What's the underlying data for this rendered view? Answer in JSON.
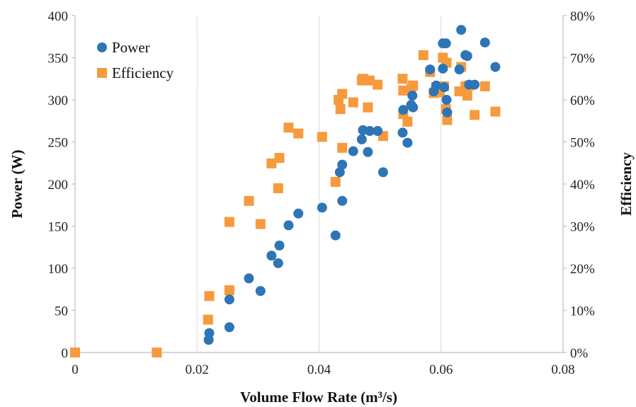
{
  "chart_data": {
    "type": "scatter",
    "xlabel": "Volume Flow Rate (m³/s)",
    "ylabel": "Power (W)",
    "y2label": "Efficiency",
    "xlim": [
      0,
      0.08
    ],
    "ylim": [
      0,
      400
    ],
    "y2lim": [
      0,
      0.8
    ],
    "x_ticks": [
      "0",
      "0.02",
      "0.04",
      "0.06",
      "0.08"
    ],
    "y_ticks": [
      "0",
      "50",
      "100",
      "150",
      "200",
      "250",
      "300",
      "350",
      "400"
    ],
    "y2_ticks": [
      "0%",
      "10%",
      "20%",
      "30%",
      "40%",
      "50%",
      "60%",
      "70%",
      "80%"
    ],
    "grid": "vertical",
    "legend_position": "top-left",
    "colors": {
      "power": "#2E75B6",
      "efficiency": "#F79A3E"
    },
    "series": [
      {
        "name": "Power",
        "axis": "left",
        "marker": "circle",
        "points": [
          [
            0.0219,
            15
          ],
          [
            0.022,
            23
          ],
          [
            0.0253,
            63
          ],
          [
            0.0253,
            30
          ],
          [
            0.0285,
            88
          ],
          [
            0.0304,
            73
          ],
          [
            0.0322,
            115
          ],
          [
            0.0333,
            106
          ],
          [
            0.0335,
            127
          ],
          [
            0.035,
            151
          ],
          [
            0.0366,
            165
          ],
          [
            0.0405,
            172
          ],
          [
            0.0427,
            139
          ],
          [
            0.0434,
            214
          ],
          [
            0.0438,
            223
          ],
          [
            0.0438,
            180
          ],
          [
            0.0456,
            239
          ],
          [
            0.047,
            253
          ],
          [
            0.0472,
            264
          ],
          [
            0.048,
            238
          ],
          [
            0.0483,
            263
          ],
          [
            0.0496,
            263
          ],
          [
            0.0505,
            214
          ],
          [
            0.0537,
            261
          ],
          [
            0.0538,
            288
          ],
          [
            0.0545,
            249
          ],
          [
            0.0551,
            294
          ],
          [
            0.0553,
            305
          ],
          [
            0.0554,
            291
          ],
          [
            0.0582,
            336
          ],
          [
            0.0588,
            310
          ],
          [
            0.0592,
            317
          ],
          [
            0.0603,
            337
          ],
          [
            0.0603,
            367
          ],
          [
            0.0605,
            315
          ],
          [
            0.0608,
            367
          ],
          [
            0.0609,
            300
          ],
          [
            0.061,
            285
          ],
          [
            0.063,
            336
          ],
          [
            0.0633,
            383
          ],
          [
            0.064,
            353
          ],
          [
            0.0643,
            352
          ],
          [
            0.0646,
            318
          ],
          [
            0.0655,
            318
          ],
          [
            0.0672,
            368
          ],
          [
            0.0689,
            339
          ]
        ]
      },
      {
        "name": "Efficiency",
        "axis": "right",
        "marker": "square",
        "points": [
          [
            0,
            0
          ],
          [
            0.0134,
            0
          ],
          [
            0.0218,
            0.078
          ],
          [
            0.022,
            0.134
          ],
          [
            0.0253,
            0.31
          ],
          [
            0.0253,
            0.148
          ],
          [
            0.0285,
            0.36
          ],
          [
            0.0304,
            0.305
          ],
          [
            0.0322,
            0.449
          ],
          [
            0.0333,
            0.39
          ],
          [
            0.0335,
            0.462
          ],
          [
            0.035,
            0.534
          ],
          [
            0.0366,
            0.52
          ],
          [
            0.0405,
            0.512
          ],
          [
            0.0427,
            0.405
          ],
          [
            0.0432,
            0.6
          ],
          [
            0.0435,
            0.578
          ],
          [
            0.0438,
            0.614
          ],
          [
            0.0438,
            0.486
          ],
          [
            0.0456,
            0.594
          ],
          [
            0.047,
            0.646
          ],
          [
            0.0472,
            0.65
          ],
          [
            0.048,
            0.582
          ],
          [
            0.0483,
            0.646
          ],
          [
            0.0496,
            0.636
          ],
          [
            0.0505,
            0.514
          ],
          [
            0.0537,
            0.65
          ],
          [
            0.0538,
            0.622
          ],
          [
            0.0538,
            0.566
          ],
          [
            0.0545,
            0.548
          ],
          [
            0.0551,
            0.626
          ],
          [
            0.0554,
            0.634
          ],
          [
            0.0571,
            0.706
          ],
          [
            0.0582,
            0.666
          ],
          [
            0.0588,
            0.616
          ],
          [
            0.0592,
            0.63
          ],
          [
            0.0598,
            0.618
          ],
          [
            0.0603,
            0.7
          ],
          [
            0.0605,
            0.632
          ],
          [
            0.0608,
            0.578
          ],
          [
            0.0609,
            0.688
          ],
          [
            0.061,
            0.552
          ],
          [
            0.063,
            0.62
          ],
          [
            0.0633,
            0.678
          ],
          [
            0.064,
            0.632
          ],
          [
            0.0643,
            0.61
          ],
          [
            0.0646,
            0.634
          ],
          [
            0.0655,
            0.564
          ],
          [
            0.0672,
            0.632
          ],
          [
            0.0689,
            0.572
          ]
        ]
      }
    ]
  }
}
